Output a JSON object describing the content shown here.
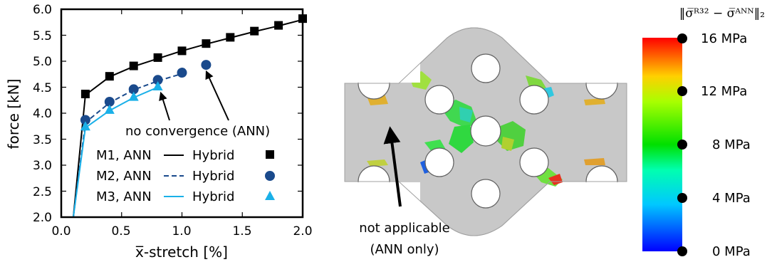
{
  "chart_data": [
    {
      "type": "line",
      "xlabel": "x̅-stretch [%]",
      "ylabel": "force [kN]",
      "xlim": [
        0.0,
        2.0
      ],
      "ylim": [
        2.0,
        6.0
      ],
      "xticks": [
        "0.0",
        "0.5",
        "1.0",
        "1.5",
        "2.0"
      ],
      "yticks": [
        "2.0",
        "2.5",
        "3.0",
        "3.5",
        "4.0",
        "4.5",
        "5.0",
        "5.5",
        "6.0"
      ],
      "legend_position": "bottom-right",
      "legend": {
        "left_labels": [
          "M1, ANN",
          "M2, ANN",
          "M3, ANN"
        ],
        "right_labels": [
          "Hybrid",
          "Hybrid",
          "Hybrid"
        ]
      },
      "series": [
        {
          "name": "M1, ANN",
          "style": "solid",
          "color": "#000000",
          "x": [
            0.1,
            0.2,
            0.4,
            0.6,
            0.8,
            1.0,
            1.2,
            1.4,
            1.6,
            1.8,
            2.0
          ],
          "y": [
            2.0,
            4.35,
            4.7,
            4.9,
            5.05,
            5.2,
            5.33,
            5.45,
            5.57,
            5.68,
            5.8
          ]
        },
        {
          "name": "M1, Hybrid",
          "marker": "square",
          "color": "#000000",
          "x": [
            0.2,
            0.4,
            0.6,
            0.8,
            1.0,
            1.2,
            1.4,
            1.6,
            1.8,
            2.0
          ],
          "y": [
            4.37,
            4.71,
            4.91,
            5.07,
            5.2,
            5.34,
            5.46,
            5.58,
            5.69,
            5.82
          ]
        },
        {
          "name": "M2, ANN",
          "style": "dashed",
          "color": "#1a4a8c",
          "x": [
            0.1,
            0.2,
            0.4,
            0.6,
            0.8,
            1.0
          ],
          "y": [
            2.0,
            3.82,
            4.2,
            4.45,
            4.62,
            4.76
          ]
        },
        {
          "name": "M2, Hybrid",
          "marker": "circle",
          "color": "#1a4a8c",
          "x": [
            0.2,
            0.4,
            0.6,
            0.8,
            1.0,
            1.2
          ],
          "y": [
            3.87,
            4.22,
            4.46,
            4.64,
            4.78,
            4.93
          ]
        },
        {
          "name": "M3, ANN",
          "style": "solid",
          "color": "#1ab0e8",
          "x": [
            0.1,
            0.2,
            0.4,
            0.6,
            0.8
          ],
          "y": [
            2.0,
            3.72,
            4.05,
            4.3,
            4.5
          ]
        },
        {
          "name": "M3, Hybrid",
          "marker": "triangle",
          "color": "#1ab0e8",
          "x": [
            0.2,
            0.4,
            0.6,
            0.8
          ],
          "y": [
            3.75,
            4.07,
            4.32,
            4.52
          ]
        }
      ],
      "annotations": [
        {
          "text": "no convergence (ANN)",
          "arrow_targets": [
            [
              0.8,
              4.55
            ],
            [
              1.2,
              4.9
            ]
          ]
        }
      ]
    },
    {
      "type": "heatmap",
      "colorbar_title": "‖σ̅ᴿ³² − σ̅ᴬᴺᴺ‖₂",
      "colorbar_ticks": [
        "16 MPa",
        "12 MPa",
        "8 MPa",
        "4 MPa",
        "0 MPa"
      ],
      "colorbar_range": [
        0,
        16
      ],
      "colormap": [
        "#ff0000",
        "#ff8800",
        "#ffff00",
        "#00e000",
        "#00ffff",
        "#0000ff"
      ],
      "annotation": {
        "line1": "not applicable",
        "line2": "(ANN only)"
      }
    }
  ]
}
